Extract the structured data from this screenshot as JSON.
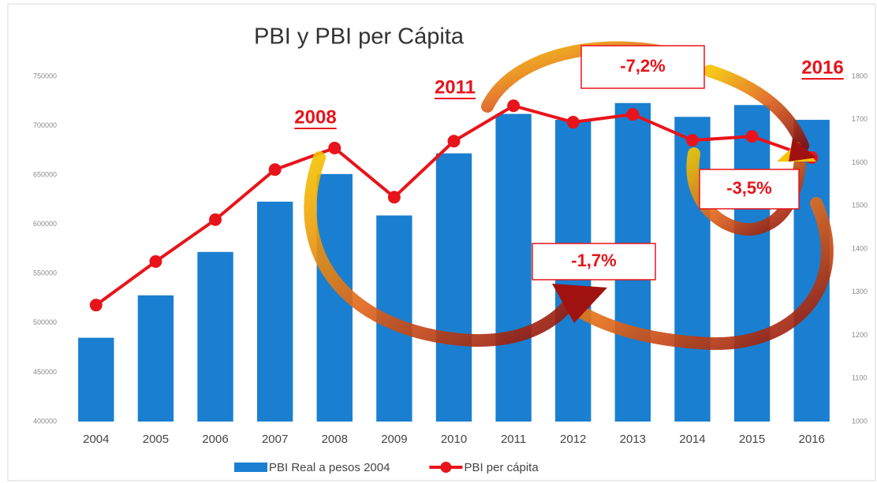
{
  "chart_data": {
    "type": "bar_line",
    "title": "PBI y PBI per Cápita",
    "categories": [
      "2004",
      "2005",
      "2006",
      "2007",
      "2008",
      "2009",
      "2010",
      "2011",
      "2012",
      "2013",
      "2014",
      "2015",
      "2016"
    ],
    "series": [
      {
        "name": "PBI Real a pesos 2004",
        "type": "bar",
        "color": "#1a7fd0",
        "values": [
          485000,
          528000,
          572000,
          623000,
          651000,
          609000,
          672000,
          712000,
          706000,
          723000,
          709000,
          721000,
          706000
        ]
      },
      {
        "name": "PBI per cápita",
        "type": "line",
        "axis": "y2",
        "color": "#e8141b",
        "values": [
          1270,
          1371,
          1468,
          1584,
          1634,
          1520,
          1650,
          1732,
          1694,
          1712,
          1652,
          1661,
          1612
        ]
      }
    ],
    "ylim": [
      400000,
      750000
    ],
    "yticks": [
      400000,
      450000,
      500000,
      550000,
      600000,
      650000,
      700000,
      750000
    ],
    "y2lim": [
      1000,
      1800
    ],
    "y2ticks": [
      1000,
      1100,
      1200,
      1300,
      1400,
      1500,
      1600,
      1700,
      1800
    ],
    "grid": false,
    "annotations": [
      "2008",
      "2011",
      "2016",
      "-7,2%",
      "-3,5%",
      "-1,7%"
    ]
  }
}
